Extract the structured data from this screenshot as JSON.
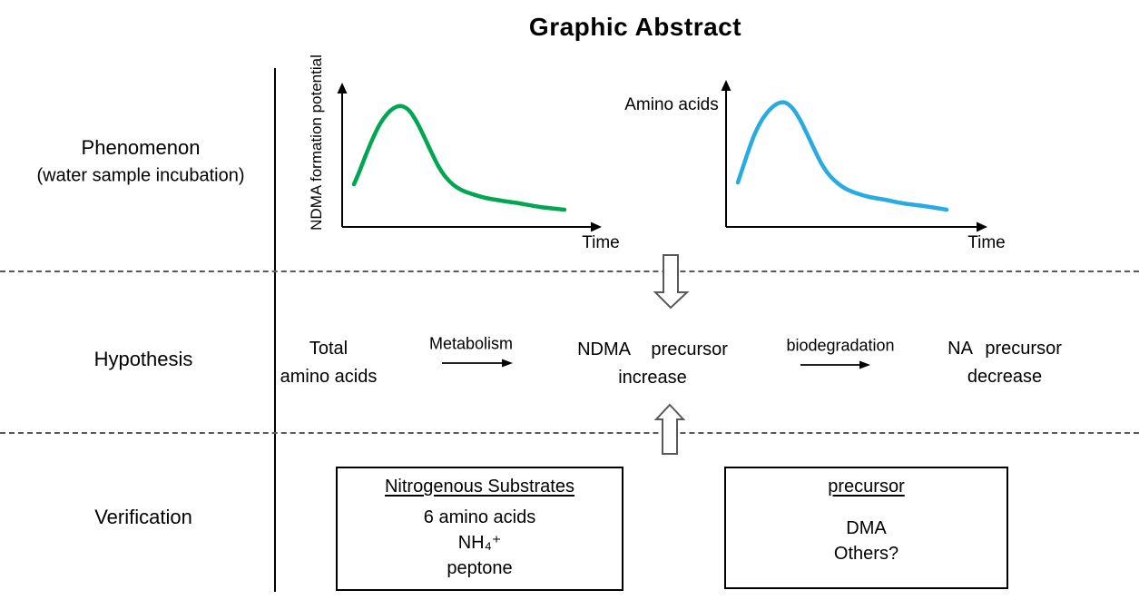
{
  "title": "Graphic Abstract",
  "rows": {
    "phenomenon": {
      "label": "Phenomenon",
      "sublabel": "(water sample incubation)"
    },
    "hypothesis": {
      "label": "Hypothesis"
    },
    "verification": {
      "label": "Verification"
    }
  },
  "colors": {
    "ndma_curve_green": "#00A651",
    "amino_curve_blue": "#29ABE2",
    "divider_gray": "#595959",
    "block_arrow_outline": "#595959",
    "axis_black": "#000000"
  },
  "charts": [
    {
      "id": "ndma-formation",
      "type": "line",
      "title": "",
      "ylabel": "NDMA formation potential",
      "xlabel": "Time",
      "color": "#00A651",
      "shape": "rise-to-peak-then-slow-decay",
      "points": [
        [
          390,
          203
        ],
        [
          396,
          189
        ],
        [
          403,
          171
        ],
        [
          411,
          152
        ],
        [
          419,
          136
        ],
        [
          428,
          124
        ],
        [
          436,
          118
        ],
        [
          443,
          117
        ],
        [
          451,
          122
        ],
        [
          459,
          134
        ],
        [
          467,
          150
        ],
        [
          475,
          167
        ],
        [
          483,
          183
        ],
        [
          491,
          195
        ],
        [
          500,
          204
        ],
        [
          510,
          210
        ],
        [
          521,
          214
        ],
        [
          535,
          218
        ],
        [
          552,
          221
        ],
        [
          572,
          224
        ],
        [
          595,
          228
        ],
        [
          622,
          231
        ]
      ]
    },
    {
      "id": "amino-acids",
      "type": "line",
      "title": "",
      "ylabel": "Amino acids",
      "xlabel": "Time",
      "color": "#29ABE2",
      "shape": "rise-to-peak-then-slow-decay",
      "points": [
        [
          813,
          201
        ],
        [
          818,
          186
        ],
        [
          824,
          168
        ],
        [
          831,
          149
        ],
        [
          839,
          133
        ],
        [
          848,
          121
        ],
        [
          857,
          114
        ],
        [
          865,
          113
        ],
        [
          873,
          119
        ],
        [
          881,
          131
        ],
        [
          889,
          147
        ],
        [
          897,
          164
        ],
        [
          905,
          180
        ],
        [
          913,
          192
        ],
        [
          922,
          201
        ],
        [
          932,
          208
        ],
        [
          944,
          213
        ],
        [
          958,
          217
        ],
        [
          975,
          220
        ],
        [
          995,
          224
        ],
        [
          1018,
          227
        ],
        [
          1043,
          231
        ]
      ]
    }
  ],
  "hypothesis": {
    "start": {
      "line1": "Total",
      "line2": "amino acids"
    },
    "step1_label": "Metabolism",
    "middle": {
      "line1": "NDMA precursor",
      "line2": "increase"
    },
    "step2_label": "biodegradation",
    "end": {
      "line1": "NA precursor",
      "line2": "decrease"
    }
  },
  "verification": {
    "boxes": [
      {
        "title": "Nitrogenous Substrates",
        "items": [
          "6 amino acids",
          "NH₄⁺",
          "peptone"
        ]
      },
      {
        "title": "precursor",
        "items": [
          "DMA",
          "Others?"
        ]
      }
    ]
  }
}
